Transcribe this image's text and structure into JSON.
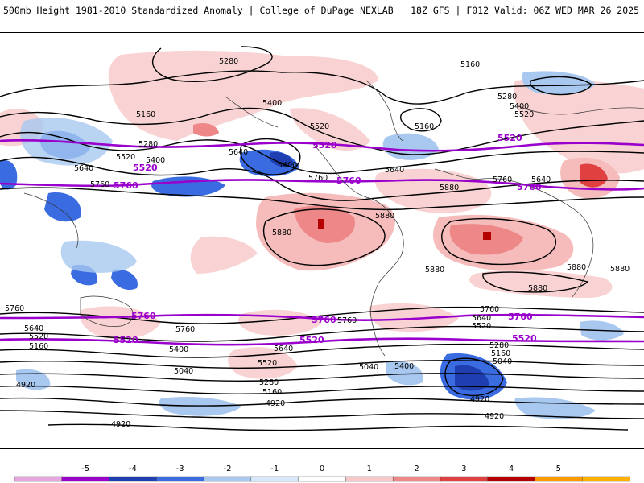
{
  "header": {
    "left": "500mb Height 1981-2010 Standardized Anomaly | College of DuPage NEXLAB",
    "right": "18Z GFS | F012 Valid: 06Z WED MAR 26 2025"
  },
  "contours": {
    "black_labels": [
      "5280",
      "5160",
      "5400",
      "5520",
      "5640",
      "5760",
      "5880",
      "5040",
      "4920"
    ],
    "purple_labels": [
      "5520",
      "5760"
    ]
  },
  "colorbar": {
    "ticks": [
      "-5",
      "-4",
      "-3",
      "-2",
      "-1",
      "0",
      "1",
      "2",
      "3",
      "4",
      "5"
    ],
    "colors": [
      "#e7a6e0",
      "#9a00cc",
      "#1f3fb0",
      "#3a6be0",
      "#a8c8f0",
      "#d8e8fa",
      "#ffffff",
      "#f6c8c8",
      "#ee8888",
      "#e04040",
      "#b40000",
      "#ff9900",
      "#ffb000"
    ]
  }
}
